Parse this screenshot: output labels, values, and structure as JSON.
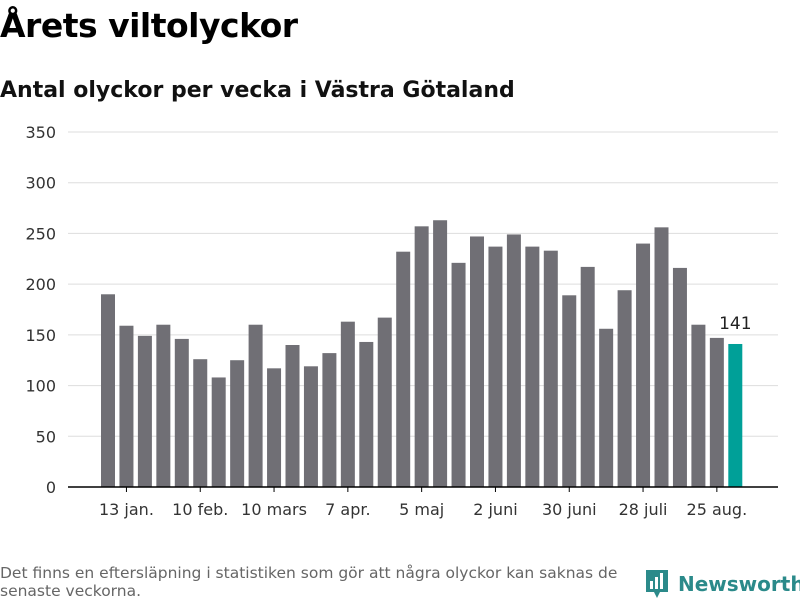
{
  "title": "Årets viltolyckor",
  "subtitle": "Antal olyckor per vecka i Västra Götaland",
  "footnote": "Det finns en eftersläpning i statistiken som gör att några olyckor kan saknas de senaste veckorna.",
  "brand": {
    "name": "Newsworthy",
    "icon": "bar-chart-pin-icon",
    "color": "#2b8a8a"
  },
  "colors": {
    "bar": "#706f75",
    "highlight": "#00a098",
    "grid": "#dddddd",
    "axis": "#000000",
    "text": "#333333"
  },
  "chart_data": {
    "type": "bar",
    "title": "",
    "xlabel": "",
    "ylabel": "",
    "ylim": [
      0,
      350
    ],
    "yticks": [
      0,
      50,
      100,
      150,
      200,
      250,
      300,
      350
    ],
    "grid": true,
    "values": [
      190,
      159,
      149,
      160,
      146,
      126,
      108,
      125,
      160,
      117,
      140,
      119,
      132,
      163,
      143,
      167,
      232,
      257,
      263,
      221,
      247,
      237,
      249,
      237,
      233,
      189,
      217,
      156,
      194,
      240,
      256,
      216,
      160,
      147,
      141
    ],
    "xtick_labels": [
      {
        "index": 1,
        "label": "13 jan."
      },
      {
        "index": 5,
        "label": "10 feb."
      },
      {
        "index": 9,
        "label": "10 mars"
      },
      {
        "index": 13,
        "label": "7 apr."
      },
      {
        "index": 17,
        "label": "5 maj"
      },
      {
        "index": 21,
        "label": "2 juni"
      },
      {
        "index": 25,
        "label": "30 juni"
      },
      {
        "index": 29,
        "label": "28 juli"
      },
      {
        "index": 33,
        "label": "25 aug."
      }
    ],
    "highlight_index": 34,
    "highlight_label": "141"
  }
}
